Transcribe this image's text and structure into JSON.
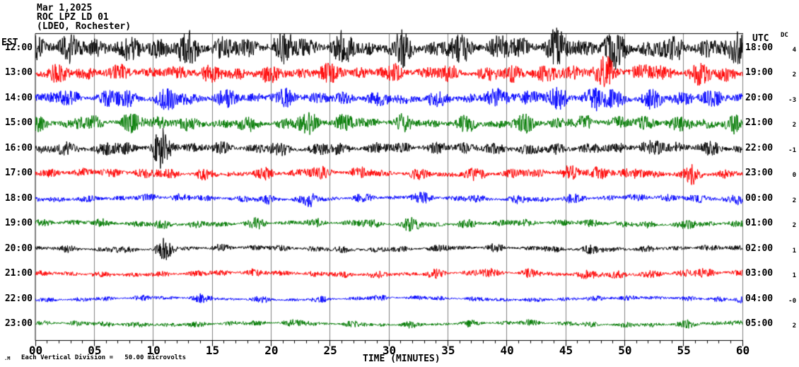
{
  "title": {
    "date": "Mar 1,2025",
    "station": "ROC LPZ LD 01",
    "location": "(LDEO, Rochester)"
  },
  "axes": {
    "left_header": "EST",
    "right_header": "UTC",
    "dc_header": "DC",
    "x_title": "TIME (MINUTES)",
    "x_tick_labels": [
      "00",
      "05",
      "10",
      "15",
      "20",
      "25",
      "30",
      "35",
      "40",
      "45",
      "50",
      "55",
      "60"
    ]
  },
  "footer": {
    "watermark": ".M",
    "scale_note": "Each Vertical Division =   50.00 microvolts"
  },
  "colors": {
    "background": "#ffffff",
    "axis": "#000000",
    "grid": "#808080",
    "trace_black": "#000000",
    "trace_red": "#ff0000",
    "trace_blue": "#0000ff",
    "trace_green": "#007a00"
  },
  "chart_data": {
    "type": "line",
    "subtype": "helicorder-seismogram",
    "title": "ROC LPZ LD 01 (LDEO, Rochester) Mar 1,2025",
    "xlabel": "TIME (MINUTES)",
    "x_range_minutes": [
      0,
      60
    ],
    "x_major_tick_min": 5,
    "x_minor_tick_min": 1,
    "grid": "vertical gray lines every 5 minutes",
    "vertical_division_microvolts": 50.0,
    "left_timezone": "EST",
    "right_timezone": "UTC",
    "color_cycle": [
      "black",
      "red",
      "blue",
      "green"
    ],
    "rows": [
      {
        "est": "12:00",
        "utc": "18:00",
        "dc": "4",
        "color": "trace_black",
        "base_amp": 16,
        "bursts": [
          [
            0.5,
            1,
            12
          ],
          [
            3,
            1,
            10
          ],
          [
            6,
            1.5,
            8
          ],
          [
            10,
            1.5,
            12
          ],
          [
            13,
            1,
            14
          ],
          [
            16,
            1,
            10
          ],
          [
            21,
            1.5,
            14
          ],
          [
            26,
            1.5,
            10
          ],
          [
            31,
            1,
            12
          ],
          [
            36,
            1.5,
            10
          ],
          [
            40,
            1,
            12
          ],
          [
            44,
            1.5,
            14
          ],
          [
            48.5,
            1.5,
            18
          ],
          [
            53,
            1,
            12
          ],
          [
            56,
            1,
            10
          ],
          [
            59.5,
            0.8,
            18
          ]
        ]
      },
      {
        "est": "13:00",
        "utc": "19:00",
        "dc": "2",
        "color": "trace_red",
        "base_amp": 11,
        "bursts": [
          [
            1,
            1,
            6
          ],
          [
            4,
            1,
            9
          ],
          [
            8,
            1,
            6
          ],
          [
            14,
            1.2,
            10
          ],
          [
            19,
            1,
            8
          ],
          [
            24,
            1.2,
            9
          ],
          [
            27,
            1,
            6
          ],
          [
            31,
            1,
            8
          ],
          [
            35,
            1,
            6
          ],
          [
            41,
            1.5,
            11
          ],
          [
            45,
            1,
            12
          ],
          [
            48.5,
            1.5,
            14
          ],
          [
            52,
            1,
            9
          ],
          [
            56,
            1.2,
            11
          ],
          [
            59,
            0.8,
            8
          ]
        ]
      },
      {
        "est": "14:00",
        "utc": "20:00",
        "dc": "-3",
        "color": "trace_blue",
        "base_amp": 11,
        "bursts": [
          [
            2,
            1,
            6
          ],
          [
            7,
            1.2,
            9
          ],
          [
            12,
            1.5,
            11
          ],
          [
            17,
            1,
            6
          ],
          [
            22,
            1.2,
            8
          ],
          [
            28,
            1,
            6
          ],
          [
            33,
            1,
            5
          ],
          [
            38,
            1,
            6
          ],
          [
            41,
            1.2,
            12
          ],
          [
            44.5,
            1,
            10
          ],
          [
            48,
            1.5,
            14
          ],
          [
            52,
            1,
            8
          ],
          [
            55.5,
            1,
            12
          ],
          [
            58.5,
            0.8,
            7
          ]
        ]
      },
      {
        "est": "15:00",
        "utc": "21:00",
        "dc": "2",
        "color": "trace_green",
        "base_amp": 10,
        "bursts": [
          [
            1,
            1,
            5
          ],
          [
            4,
            1,
            7
          ],
          [
            8,
            1,
            8
          ],
          [
            11.5,
            1.2,
            9
          ],
          [
            17,
            1,
            6
          ],
          [
            23,
            1.5,
            9
          ],
          [
            26,
            1,
            7
          ],
          [
            31,
            1,
            5
          ],
          [
            37,
            1,
            5
          ],
          [
            42,
            1.2,
            7
          ],
          [
            47,
            1,
            5
          ],
          [
            52,
            1.2,
            7
          ],
          [
            56,
            1,
            8
          ],
          [
            59,
            0.8,
            6
          ]
        ]
      },
      {
        "est": "16:00",
        "utc": "22:00",
        "dc": "-1",
        "color": "trace_black",
        "base_amp": 9,
        "bursts": [
          [
            3,
            1,
            5
          ],
          [
            7,
            1,
            7
          ],
          [
            10.6,
            0.9,
            24
          ],
          [
            14,
            1,
            5
          ],
          [
            20,
            1.2,
            4
          ],
          [
            25,
            1,
            5
          ],
          [
            31,
            1,
            4
          ],
          [
            36,
            1.2,
            7
          ],
          [
            41,
            1,
            5
          ],
          [
            45,
            1,
            4
          ],
          [
            50,
            1,
            5
          ],
          [
            53.5,
            1.2,
            10
          ],
          [
            58,
            1,
            6
          ]
        ]
      },
      {
        "est": "17:00",
        "utc": "23:00",
        "dc": "0",
        "color": "trace_red",
        "base_amp": 7,
        "bursts": [
          [
            3,
            1,
            3
          ],
          [
            7,
            1,
            5
          ],
          [
            11,
            1.2,
            7
          ],
          [
            15,
            1,
            3
          ],
          [
            20,
            1.2,
            5
          ],
          [
            24,
            1,
            7
          ],
          [
            28,
            1,
            4
          ],
          [
            33,
            1,
            3
          ],
          [
            37,
            1,
            5
          ],
          [
            41,
            1,
            4
          ],
          [
            45,
            1,
            8
          ],
          [
            48.5,
            1.2,
            11
          ],
          [
            52,
            1,
            5
          ],
          [
            55.5,
            1,
            9
          ],
          [
            58.5,
            0.8,
            4
          ]
        ]
      },
      {
        "est": "18:00",
        "utc": "00:00",
        "dc": "2",
        "color": "trace_blue",
        "base_amp": 5,
        "bursts": [
          [
            3,
            1,
            3
          ],
          [
            8,
            1,
            3
          ],
          [
            12,
            1.2,
            5
          ],
          [
            17,
            1,
            3
          ],
          [
            20,
            1,
            5
          ],
          [
            23.5,
            0.7,
            13
          ],
          [
            28,
            1,
            3
          ],
          [
            33,
            1.2,
            5
          ],
          [
            37,
            1,
            3
          ],
          [
            41,
            1,
            3
          ],
          [
            45,
            1,
            5
          ],
          [
            49,
            1,
            3
          ],
          [
            53,
            1.2,
            5
          ],
          [
            57,
            1,
            6
          ],
          [
            59.7,
            0.5,
            10
          ]
        ]
      },
      {
        "est": "19:00",
        "utc": "01:00",
        "dc": "2",
        "color": "trace_green",
        "base_amp": 5,
        "bursts": [
          [
            2,
            1,
            3
          ],
          [
            6,
            1,
            3
          ],
          [
            11,
            1.2,
            5
          ],
          [
            15,
            1,
            3
          ],
          [
            19,
            1,
            5
          ],
          [
            24,
            1,
            3
          ],
          [
            28,
            1,
            5
          ],
          [
            32,
            1.2,
            7
          ],
          [
            36,
            1,
            3
          ],
          [
            40,
            1,
            5
          ],
          [
            44,
            1,
            3
          ],
          [
            48,
            1,
            5
          ],
          [
            52,
            1,
            3
          ],
          [
            56,
            1,
            5
          ],
          [
            59,
            0.6,
            4
          ]
        ]
      },
      {
        "est": "20:00",
        "utc": "02:00",
        "dc": "1",
        "color": "trace_black",
        "base_amp": 4.5,
        "bursts": [
          [
            3,
            1,
            2
          ],
          [
            7,
            1,
            3
          ],
          [
            11,
            0.8,
            14
          ],
          [
            15,
            1,
            2
          ],
          [
            19,
            1,
            3
          ],
          [
            23,
            1,
            2
          ],
          [
            27,
            1,
            3
          ],
          [
            31,
            1,
            2
          ],
          [
            35,
            1,
            3
          ],
          [
            39,
            1,
            2
          ],
          [
            43,
            1,
            3
          ],
          [
            47,
            1.2,
            5
          ],
          [
            51,
            1,
            3
          ],
          [
            55,
            1,
            2
          ],
          [
            59,
            0.8,
            4
          ]
        ]
      },
      {
        "est": "21:00",
        "utc": "03:00",
        "dc": "1",
        "color": "trace_red",
        "base_amp": 4.5,
        "bursts": [
          [
            4,
            1,
            2
          ],
          [
            9,
            1,
            2
          ],
          [
            14,
            1,
            3
          ],
          [
            18,
            1.2,
            4
          ],
          [
            22,
            1,
            3
          ],
          [
            26,
            1,
            4
          ],
          [
            30,
            1,
            3
          ],
          [
            34,
            1,
            4
          ],
          [
            38,
            1.2,
            6
          ],
          [
            42,
            1,
            4
          ],
          [
            46,
            1,
            6
          ],
          [
            49,
            1,
            8
          ],
          [
            53,
            1,
            4
          ],
          [
            56,
            1.2,
            6
          ],
          [
            59,
            0.8,
            4
          ]
        ]
      },
      {
        "est": "22:00",
        "utc": "04:00",
        "dc": "-0",
        "color": "trace_blue",
        "base_amp": 3.5,
        "bursts": [
          [
            4,
            1,
            2
          ],
          [
            9,
            1,
            2
          ],
          [
            14,
            1.2,
            4
          ],
          [
            19,
            1,
            2
          ],
          [
            24,
            1,
            2
          ],
          [
            29,
            1,
            2
          ],
          [
            34,
            1,
            1.5
          ],
          [
            39,
            1,
            2
          ],
          [
            44,
            1,
            2
          ],
          [
            49,
            1.2,
            4
          ],
          [
            54,
            1,
            2
          ],
          [
            58,
            0.8,
            4
          ],
          [
            59.7,
            0.4,
            6
          ]
        ]
      },
      {
        "est": "23:00",
        "utc": "05:00",
        "dc": "2",
        "color": "trace_green",
        "base_amp": 4,
        "bursts": [
          [
            3,
            1,
            2
          ],
          [
            7,
            1.2,
            4
          ],
          [
            12,
            1,
            3
          ],
          [
            17,
            1,
            2
          ],
          [
            22,
            1.2,
            4
          ],
          [
            27,
            1,
            2
          ],
          [
            32,
            1,
            2
          ],
          [
            37,
            1,
            2
          ],
          [
            42,
            1,
            2
          ],
          [
            47,
            1,
            2
          ],
          [
            52,
            1,
            2
          ],
          [
            56,
            1.2,
            4
          ],
          [
            59,
            0.6,
            3
          ]
        ]
      }
    ]
  }
}
